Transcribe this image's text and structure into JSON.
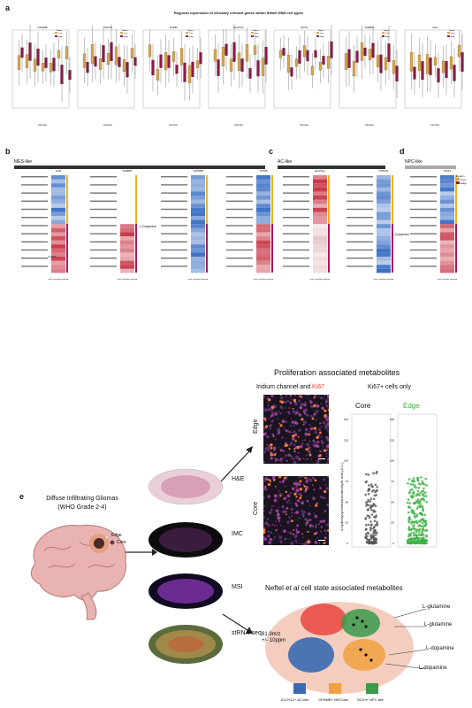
{
  "panel_a": {
    "letter": "a",
    "title": "Regional expression of clincially relevant genes within IDHwt GBM cell-types",
    "xlabel": "Cell type",
    "ylabel": "Expression",
    "legend_title": "Region",
    "legend_core": "Core",
    "legend_edge": "Edge",
    "genes": [
      "GPNMB",
      "POSTN",
      "TGFBI",
      "ELOVL2",
      "SOX4",
      "IGFBP5",
      "LDH"
    ],
    "colors": {
      "core": "#d9a84a",
      "edge": "#8e1a47"
    }
  },
  "panel_b": {
    "letter": "b",
    "label": "MES-like",
    "genes": [
      "LDH",
      "IGFBP5",
      "GPNMB",
      "TGFBI"
    ],
    "metabolite": "L-Dopamine",
    "metabolite2": "4-HIDA"
  },
  "panel_c": {
    "letter": "c",
    "label": "AC-like",
    "genes": [
      "ELOVL2",
      "POSTN"
    ]
  },
  "panel_d": {
    "letter": "d",
    "label": "NPC-like",
    "genes": [
      "SOX4"
    ],
    "legend_title": "Region",
    "legend_core": "Core",
    "legend_edge": "Edge"
  },
  "heatmap_footer": "mvd_zoverlap zoverlap",
  "panel_e": {
    "letter": "e",
    "glioma_title_1": "Diffuse Infiltrating Gliomas",
    "glioma_title_2": "(WHO Grade 2-4)",
    "edge_label": "Edge",
    "core_label": "Core",
    "layers": [
      "H&E",
      "IMC",
      "MSI",
      "stRNA-seq"
    ],
    "prolif_title": "Proliferation associated metabolites",
    "iridium_prefix": "Iridium channel and ",
    "ki67": "Ki67",
    "ki67_cells": "Ki67+ cells only",
    "row_edge": "Edge",
    "row_core": "Core",
    "col_core": "Core",
    "col_edge": "Edge",
    "y_axis": "4-hydroxycyclohexanecarboxylic acid (A.U.)",
    "y_ticks": [
      "0",
      "25",
      "50",
      "75",
      "100",
      "125",
      "150"
    ],
    "neftel_title_1": "Neftel ",
    "neftel_title_2": "et al",
    "neftel_title_3": " cell state associated metabolites",
    "mz_1": "81.9m/z",
    "mz_2": "+/- 10ppm",
    "metabolites": [
      "L-glutamine",
      "L-glutamine",
      "L-dopamine",
      "L-dopamine"
    ],
    "legend": [
      "ELOVL2+ AC-like",
      "GPNMB+ MES-like",
      "SOX4+ NPC-like"
    ],
    "colors": {
      "ki67": "#e8442b",
      "edge_green": "#3cb043",
      "core_gray": "#555555"
    }
  }
}
